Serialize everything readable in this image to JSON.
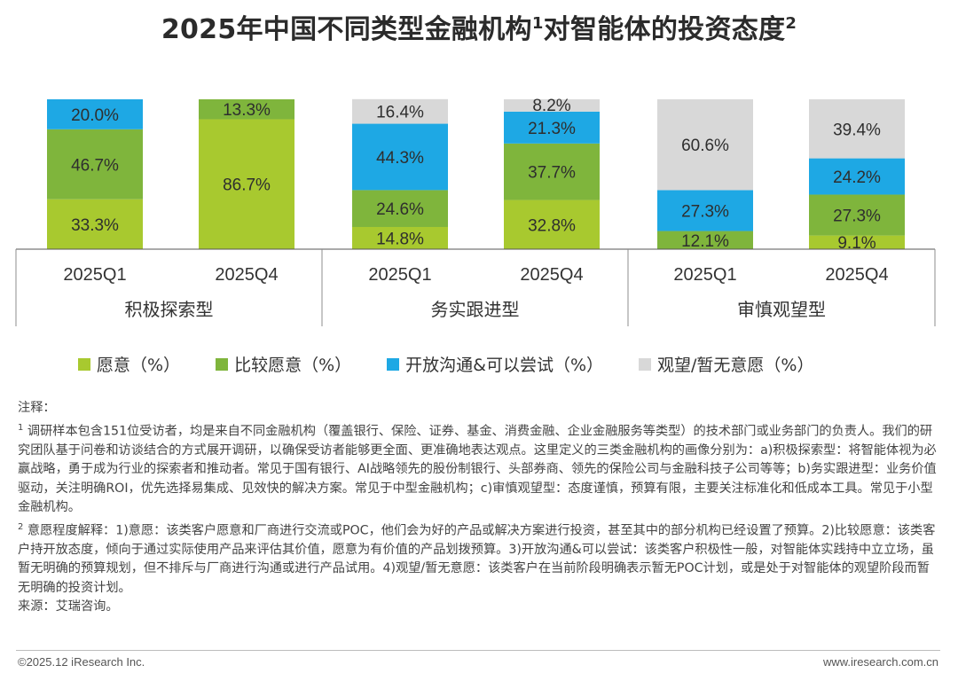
{
  "page": {
    "title": "2025年中国不同类型金融机构",
    "title_mark1": "1",
    "title_mid": "对智能体的投资态度",
    "title_mark2": "2"
  },
  "chart_data": {
    "type": "bar",
    "stacked": true,
    "title": "2025年中国不同类型金融机构对智能体的投资态度",
    "groups": [
      "积极探索型",
      "务实跟进型",
      "审慎观望型"
    ],
    "categories": [
      "2025Q1",
      "2025Q4",
      "2025Q1",
      "2025Q4",
      "2025Q1",
      "2025Q4"
    ],
    "series": [
      {
        "name": "愿意（%）",
        "color": "#a8c92f",
        "values": [
          33.3,
          86.7,
          14.8,
          32.8,
          0,
          9.1
        ],
        "labels": [
          "33.3%",
          "86.7%",
          "14.8%",
          "32.8%",
          "",
          "9.1%"
        ]
      },
      {
        "name": "比较愿意（%）",
        "color": "#7fb53c",
        "values": [
          46.7,
          13.3,
          24.6,
          37.7,
          12.1,
          27.3
        ],
        "labels": [
          "46.7%",
          "13.3%",
          "24.6%",
          "37.7%",
          "12.1%",
          "27.3%"
        ]
      },
      {
        "name": "开放沟通&可以尝试（%）",
        "color": "#1ea8e4",
        "values": [
          20.0,
          0,
          44.3,
          21.3,
          27.3,
          24.2
        ],
        "labels": [
          "20.0%",
          "",
          "44.3%",
          "21.3%",
          "27.3%",
          "24.2%"
        ]
      },
      {
        "name": "观望/暂无意愿（%）",
        "color": "#d8d8d8",
        "values": [
          0,
          0,
          16.4,
          8.2,
          60.6,
          39.4
        ],
        "labels": [
          "",
          "",
          "16.4%",
          "8.2%",
          "60.6%",
          "39.4%"
        ]
      }
    ],
    "ylim": [
      0,
      100
    ],
    "grid": false,
    "legend": "bottom"
  },
  "colors": {
    "axis": "#555555",
    "separator": "#8c8c8c"
  },
  "notes": {
    "heading": "注释：",
    "note1_mark": "1",
    "note1_text": "调研样本包含151位受访者，均是来自不同金融机构（覆盖银行、保险、证券、基金、消费金融、企业金融服务等类型）的技术部门或业务部门的负责人。我们的研究团队基于问卷和访谈结合的方式展开调研，以确保受访者能够更全面、更准确地表达观点。这里定义的三类金融机构的画像分别为：a)积极探索型：将智能体视为必赢战略，勇于成为行业的探索者和推动者。常见于国有银行、AI战略领先的股份制银行、头部券商、领先的保险公司与金融科技子公司等等；b)务实跟进型：业务价值驱动，关注明确ROI，优先选择易集成、见效快的解决方案。常见于中型金融机构；c)审慎观望型：态度谨慎，预算有限，主要关注标准化和低成本工具。常见于小型金融机构。",
    "note2_mark": "2",
    "note2_text": "意愿程度解释：1)意愿：该类客户愿意和厂商进行交流或POC，他们会为好的产品或解决方案进行投资，甚至其中的部分机构已经设置了预算。2)比较愿意：该类客户持开放态度，倾向于通过实际使用产品来评估其价值，愿意为有价值的产品划拨预算。3)开放沟通&可以尝试：该类客户积极性一般，对智能体实践持中立立场，虽暂无明确的预算规划，但不排斥与厂商进行沟通或进行产品试用。4)观望/暂无意愿：该类客户在当前阶段明确表示暂无POC计划，或是处于对智能体的观望阶段而暂无明确的投资计划。",
    "source": "来源：艾瑞咨询。"
  },
  "footer": {
    "copyright": "©2025.12 iResearch Inc.",
    "website": "www.iresearch.com.cn"
  }
}
